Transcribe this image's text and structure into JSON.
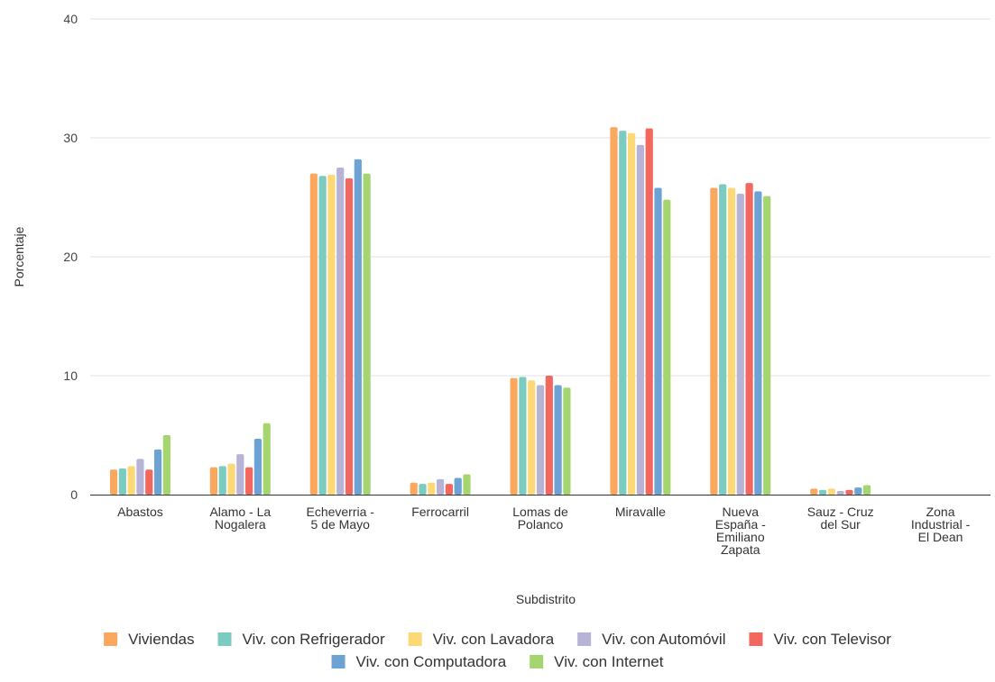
{
  "chart_data": {
    "type": "bar",
    "xlabel": "Subdistrito",
    "ylabel": "Porcentaje",
    "ylim": [
      0,
      40
    ],
    "yticks": [
      0,
      10,
      20,
      30,
      40
    ],
    "grid": true,
    "legend_position": "bottom",
    "categories": [
      [
        "Abastos"
      ],
      [
        "Alamo - La",
        "Nogalera"
      ],
      [
        "Echeverria -",
        "5 de Mayo"
      ],
      [
        "Ferrocarril"
      ],
      [
        "Lomas de",
        "Polanco"
      ],
      [
        "Miravalle"
      ],
      [
        "Nueva",
        "España -",
        "Emiliano",
        "Zapata"
      ],
      [
        "Sauz - Cruz",
        "del Sur"
      ],
      [
        "Zona",
        "Industrial -",
        "El Dean"
      ]
    ],
    "series": [
      {
        "name": "Viviendas",
        "color": "#f9a85d",
        "values": [
          2.1,
          2.3,
          27.0,
          1.0,
          9.8,
          30.9,
          25.8,
          0.5,
          0
        ]
      },
      {
        "name": "Viv. con Refrigerador",
        "color": "#7ccbc1",
        "values": [
          2.2,
          2.4,
          26.8,
          0.9,
          9.9,
          30.6,
          26.1,
          0.4,
          0
        ]
      },
      {
        "name": "Viv. con Lavadora",
        "color": "#fcd877",
        "values": [
          2.4,
          2.6,
          26.9,
          1.0,
          9.6,
          30.4,
          25.8,
          0.5,
          0
        ]
      },
      {
        "name": "Viv. con Automóvil",
        "color": "#b7b3d6",
        "values": [
          3.0,
          3.4,
          27.5,
          1.3,
          9.2,
          29.4,
          25.3,
          0.3,
          0
        ]
      },
      {
        "name": "Viv. con Televisor",
        "color": "#f2685f",
        "values": [
          2.1,
          2.3,
          26.6,
          0.9,
          10.0,
          30.8,
          26.2,
          0.4,
          0
        ]
      },
      {
        "name": "Viv. con Computadora",
        "color": "#6da2d5",
        "values": [
          3.8,
          4.7,
          28.2,
          1.4,
          9.2,
          25.8,
          25.5,
          0.6,
          0
        ]
      },
      {
        "name": "Viv. con Internet",
        "color": "#a4d56e",
        "values": [
          5.0,
          6.0,
          27.0,
          1.7,
          9.0,
          24.8,
          25.1,
          0.8,
          0
        ]
      }
    ]
  }
}
